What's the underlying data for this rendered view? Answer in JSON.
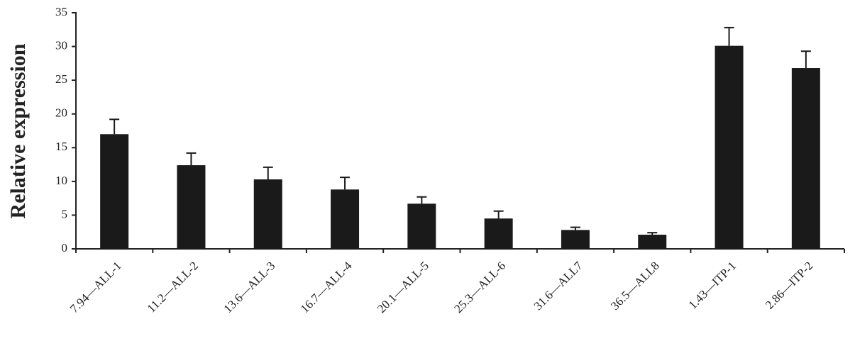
{
  "chart_data": {
    "type": "bar",
    "y_label": "Relative expression",
    "categories": [
      "7.94—ALL-1",
      "11.2—ALL-2",
      "13.6—ALL-3",
      "16.7—ALL-4",
      "20.1—ALL-5",
      "25.3—ALL-6",
      "31.6—ALL7",
      "36.5—ALL8",
      "1.43—ITP-1",
      "2.86—ITP-2"
    ],
    "values": [
      17.0,
      12.4,
      10.3,
      8.8,
      6.7,
      4.5,
      2.8,
      2.1,
      30.1,
      26.8
    ],
    "errors": [
      2.2,
      1.8,
      1.8,
      1.8,
      1.0,
      1.1,
      0.4,
      0.3,
      2.7,
      2.5
    ],
    "color": "#1a1a1a",
    "ylim": [
      0,
      35
    ],
    "yticks": [
      0,
      5,
      10,
      15,
      20,
      25,
      30,
      35
    ]
  }
}
